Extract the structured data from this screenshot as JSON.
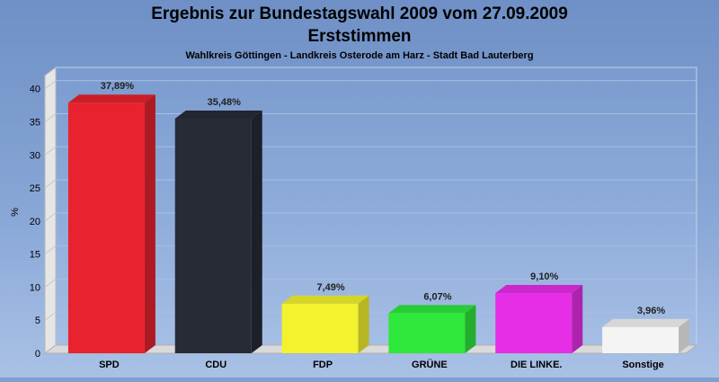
{
  "chart_data": {
    "type": "bar",
    "title": "Ergebnis zur Bundestagswahl 2009 vom 27.09.2009",
    "title_line2": "Erststimmen",
    "subtitle": "Wahlkreis Göttingen - Landkreis Osterode am Harz - Stadt Bad Lauterberg",
    "ylabel": "%",
    "xlabel": "",
    "ylim": [
      0,
      42
    ],
    "yticks": [
      0,
      5,
      10,
      15,
      20,
      25,
      30,
      35,
      40
    ],
    "grid": true,
    "categories": [
      "SPD",
      "CDU",
      "FDP",
      "GRÜNE",
      "DIE LINKE.",
      "Sonstige"
    ],
    "values": [
      37.89,
      35.48,
      7.49,
      6.07,
      9.1,
      3.96
    ],
    "value_labels": [
      "37,89%",
      "35,48%",
      "7,49%",
      "6,07%",
      "9,10%",
      "3,96%"
    ],
    "colors": [
      "#e8222e",
      "#272b36",
      "#f2f22e",
      "#2ee83c",
      "#e62ee6",
      "#f4f4f4"
    ]
  }
}
